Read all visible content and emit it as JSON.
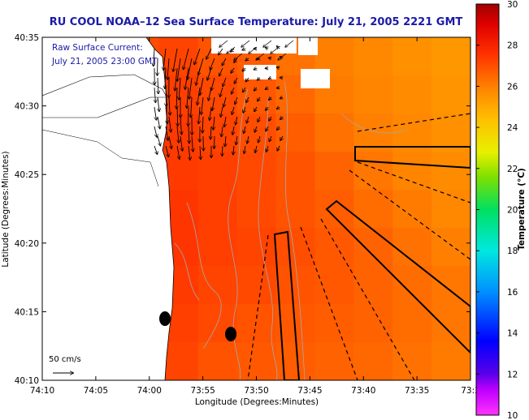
{
  "chart_data": {
    "type": "heatmap",
    "title": "RU COOL  NOAA–12  Sea Surface Temperature:  July 21, 2005 2221 GMT",
    "xlabel": "Longitude (Degrees:Minutes)",
    "ylabel": "Latitude (Degrees:Minutes)",
    "x_ticks": [
      "74:10",
      "74:05",
      "74:00",
      "73:55",
      "73:50",
      "73:45",
      "73:40",
      "73:35",
      "73:3"
    ],
    "y_ticks": [
      "40:35",
      "40:30",
      "40:25",
      "40:20",
      "40:15",
      "40:10"
    ],
    "xlim_min": [
      -74.1667,
      -73.5
    ],
    "ylim_min": [
      40.1667,
      40.5833
    ],
    "colorbar": {
      "label": "Temperature (°C)",
      "range": [
        10,
        30
      ],
      "ticks": [
        "30",
        "28",
        "26",
        "24",
        "22",
        "20",
        "18",
        "16",
        "14",
        "12",
        "10"
      ]
    },
    "annotations": {
      "current_line1": "Raw Surface Current:",
      "current_line2": "July 21, 2005 23:00 GMT",
      "scale_label": "50 cm/s"
    },
    "sst_grid_degC": [
      [
        26.8,
        26.9,
        27.0,
        27.2,
        26.9,
        26.7,
        26.3,
        26.0,
        25.8,
        25.6,
        25.4
      ],
      [
        27.0,
        27.1,
        27.2,
        27.3,
        27.1,
        26.8,
        26.5,
        26.1,
        25.9,
        25.7,
        25.5
      ],
      [
        27.2,
        27.3,
        27.4,
        27.4,
        27.2,
        27.0,
        26.7,
        26.3,
        26.0,
        25.8,
        25.6
      ],
      [
        27.4,
        27.5,
        27.5,
        27.4,
        27.3,
        27.1,
        26.9,
        26.6,
        26.2,
        25.9,
        25.7
      ],
      [
        27.5,
        27.6,
        27.6,
        27.5,
        27.3,
        27.1,
        26.9,
        26.7,
        26.4,
        26.1,
        25.8
      ],
      [
        27.6,
        27.7,
        27.6,
        27.5,
        27.3,
        27.2,
        27.0,
        26.8,
        26.6,
        26.3,
        26.0
      ],
      [
        27.7,
        27.7,
        27.6,
        27.4,
        27.2,
        27.1,
        26.9,
        26.8,
        26.6,
        26.4,
        26.2
      ],
      [
        27.8,
        27.8,
        27.6,
        27.3,
        27.1,
        26.9,
        26.8,
        26.7,
        26.6,
        26.4,
        26.2
      ],
      [
        27.8,
        27.7,
        27.5,
        27.2,
        26.9,
        26.8,
        26.7,
        26.6,
        26.5,
        26.3,
        26.1
      ]
    ]
  }
}
